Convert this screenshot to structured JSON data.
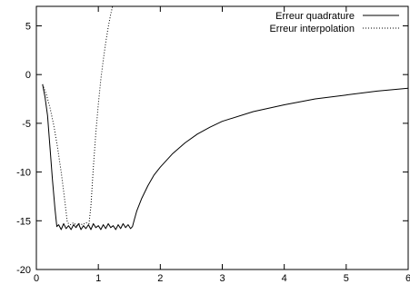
{
  "chart_data": {
    "type": "line",
    "title": "",
    "xlabel": "",
    "ylabel": "",
    "xlim": [
      0,
      6
    ],
    "ylim": [
      -20,
      7
    ],
    "x_ticks": [
      0,
      1,
      2,
      3,
      4,
      5,
      6
    ],
    "y_ticks": [
      5,
      0,
      -5,
      -10,
      -15,
      -20
    ],
    "grid": false,
    "legend_position": "top-right",
    "series": [
      {
        "name": "Erreur quadrature",
        "style": "solid",
        "color": "#000000",
        "points": [
          [
            0.1,
            -1.0
          ],
          [
            0.14,
            -2.3
          ],
          [
            0.18,
            -4.2
          ],
          [
            0.22,
            -7.5
          ],
          [
            0.26,
            -10.8
          ],
          [
            0.3,
            -13.8
          ],
          [
            0.33,
            -15.6
          ],
          [
            0.36,
            -15.4
          ],
          [
            0.4,
            -15.9
          ],
          [
            0.44,
            -15.3
          ],
          [
            0.48,
            -15.8
          ],
          [
            0.52,
            -15.5
          ],
          [
            0.56,
            -15.9
          ],
          [
            0.6,
            -15.4
          ],
          [
            0.64,
            -15.7
          ],
          [
            0.68,
            -15.3
          ],
          [
            0.72,
            -15.9
          ],
          [
            0.76,
            -15.5
          ],
          [
            0.8,
            -15.8
          ],
          [
            0.84,
            -15.4
          ],
          [
            0.88,
            -15.9
          ],
          [
            0.92,
            -15.3
          ],
          [
            0.96,
            -15.7
          ],
          [
            1.0,
            -15.5
          ],
          [
            1.04,
            -15.9
          ],
          [
            1.08,
            -15.4
          ],
          [
            1.12,
            -15.8
          ],
          [
            1.16,
            -15.3
          ],
          [
            1.2,
            -15.7
          ],
          [
            1.24,
            -15.5
          ],
          [
            1.28,
            -15.9
          ],
          [
            1.32,
            -15.4
          ],
          [
            1.36,
            -15.8
          ],
          [
            1.4,
            -15.3
          ],
          [
            1.44,
            -15.7
          ],
          [
            1.48,
            -15.4
          ],
          [
            1.52,
            -15.8
          ],
          [
            1.55,
            -15.6
          ],
          [
            1.58,
            -14.9
          ],
          [
            1.62,
            -14.0
          ],
          [
            1.7,
            -12.7
          ],
          [
            1.8,
            -11.4
          ],
          [
            1.9,
            -10.3
          ],
          [
            2.0,
            -9.5
          ],
          [
            2.2,
            -8.1
          ],
          [
            2.4,
            -7.0
          ],
          [
            2.6,
            -6.1
          ],
          [
            2.8,
            -5.4
          ],
          [
            3.0,
            -4.8
          ],
          [
            3.5,
            -3.8
          ],
          [
            4.0,
            -3.1
          ],
          [
            4.5,
            -2.5
          ],
          [
            5.0,
            -2.1
          ],
          [
            5.5,
            -1.7
          ],
          [
            6.0,
            -1.4
          ]
        ]
      },
      {
        "name": "Erreur interpolation",
        "style": "dotted",
        "color": "#000000",
        "points": [
          [
            0.1,
            -1.0
          ],
          [
            0.16,
            -2.0
          ],
          [
            0.22,
            -3.4
          ],
          [
            0.28,
            -5.2
          ],
          [
            0.34,
            -7.4
          ],
          [
            0.4,
            -10.0
          ],
          [
            0.45,
            -12.5
          ],
          [
            0.5,
            -15.2
          ],
          [
            0.55,
            -15.4
          ],
          [
            0.6,
            -15.2
          ],
          [
            0.65,
            -15.5
          ],
          [
            0.7,
            -15.3
          ],
          [
            0.75,
            -15.4
          ],
          [
            0.8,
            -15.2
          ],
          [
            0.85,
            -15.3
          ],
          [
            0.88,
            -13.5
          ],
          [
            0.92,
            -9.5
          ],
          [
            0.96,
            -6.0
          ],
          [
            1.0,
            -3.0
          ],
          [
            1.04,
            -0.5
          ],
          [
            1.08,
            1.5
          ],
          [
            1.12,
            3.3
          ],
          [
            1.16,
            4.9
          ],
          [
            1.2,
            6.2
          ],
          [
            1.23,
            7.0
          ]
        ]
      }
    ]
  }
}
